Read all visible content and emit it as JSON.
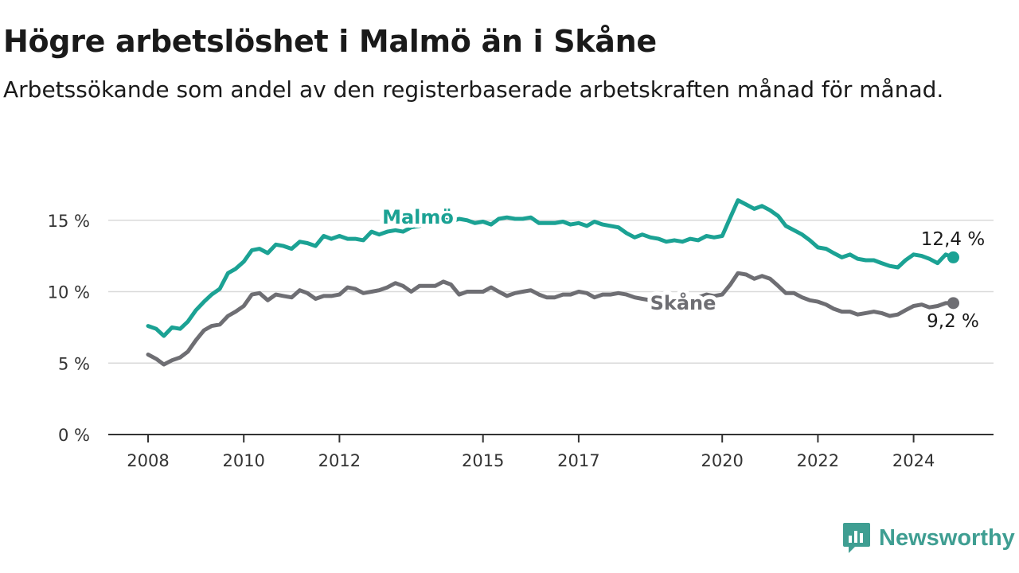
{
  "title": "Högre arbetslöshet i Malmö än i Skåne",
  "subtitle": "Arbetssökande som andel av den registerbaserade arbetskraften månad för månad.",
  "brand": {
    "name": "Newsworthy",
    "icon": "newsworthy-logo-icon",
    "color": "#3f9e92"
  },
  "chart_data": {
    "type": "line",
    "title": "Högre arbetslöshet i Malmö än i Skåne",
    "subtitle": "Arbetssökande som andel av den registerbaserade arbetskraften månad för månad.",
    "xlabel": "",
    "ylabel": "",
    "xlim": [
      2007.5,
      2025.75
    ],
    "ylim": [
      0,
      16.5
    ],
    "x_ticks": [
      {
        "value": 2008,
        "label": "2008"
      },
      {
        "value": 2010,
        "label": "2010"
      },
      {
        "value": 2012,
        "label": "2012"
      },
      {
        "value": 2015,
        "label": "2015"
      },
      {
        "value": 2017,
        "label": "2017"
      },
      {
        "value": 2020,
        "label": "2020"
      },
      {
        "value": 2022,
        "label": "2022"
      },
      {
        "value": 2024,
        "label": "2024"
      }
    ],
    "y_ticks": [
      {
        "value": 0,
        "label": "0 %"
      },
      {
        "value": 5,
        "label": "5 %"
      },
      {
        "value": 10,
        "label": "10 %"
      },
      {
        "value": 15,
        "label": "15 %"
      }
    ],
    "grid": true,
    "legend": "direct labels on lines",
    "series": [
      {
        "name": "Malmö",
        "color": "#1ba294",
        "end_label": "12,4 %",
        "points": [
          [
            2008.0,
            7.6
          ],
          [
            2008.17,
            7.4
          ],
          [
            2008.33,
            6.9
          ],
          [
            2008.5,
            7.5
          ],
          [
            2008.67,
            7.4
          ],
          [
            2008.83,
            7.9
          ],
          [
            2009.0,
            8.7
          ],
          [
            2009.17,
            9.3
          ],
          [
            2009.33,
            9.8
          ],
          [
            2009.5,
            10.2
          ],
          [
            2009.67,
            11.3
          ],
          [
            2009.83,
            11.6
          ],
          [
            2010.0,
            12.1
          ],
          [
            2010.17,
            12.9
          ],
          [
            2010.33,
            13.0
          ],
          [
            2010.5,
            12.7
          ],
          [
            2010.67,
            13.3
          ],
          [
            2010.83,
            13.2
          ],
          [
            2011.0,
            13.0
          ],
          [
            2011.17,
            13.5
          ],
          [
            2011.33,
            13.4
          ],
          [
            2011.5,
            13.2
          ],
          [
            2011.67,
            13.9
          ],
          [
            2011.83,
            13.7
          ],
          [
            2012.0,
            13.9
          ],
          [
            2012.17,
            13.7
          ],
          [
            2012.33,
            13.7
          ],
          [
            2012.5,
            13.6
          ],
          [
            2012.67,
            14.2
          ],
          [
            2012.83,
            14.0
          ],
          [
            2013.0,
            14.2
          ],
          [
            2013.17,
            14.3
          ],
          [
            2013.33,
            14.2
          ],
          [
            2013.5,
            14.5
          ],
          [
            2013.67,
            14.6
          ],
          [
            2013.83,
            14.8
          ],
          [
            2014.0,
            15.0
          ],
          [
            2014.17,
            15.1
          ],
          [
            2014.33,
            14.9
          ],
          [
            2014.5,
            15.1
          ],
          [
            2014.67,
            15.0
          ],
          [
            2014.83,
            14.8
          ],
          [
            2015.0,
            14.9
          ],
          [
            2015.17,
            14.7
          ],
          [
            2015.33,
            15.1
          ],
          [
            2015.5,
            15.2
          ],
          [
            2015.67,
            15.1
          ],
          [
            2015.83,
            15.1
          ],
          [
            2016.0,
            15.2
          ],
          [
            2016.17,
            14.8
          ],
          [
            2016.33,
            14.8
          ],
          [
            2016.5,
            14.8
          ],
          [
            2016.67,
            14.9
          ],
          [
            2016.83,
            14.7
          ],
          [
            2017.0,
            14.8
          ],
          [
            2017.17,
            14.6
          ],
          [
            2017.33,
            14.9
          ],
          [
            2017.5,
            14.7
          ],
          [
            2017.67,
            14.6
          ],
          [
            2017.83,
            14.5
          ],
          [
            2018.0,
            14.1
          ],
          [
            2018.17,
            13.8
          ],
          [
            2018.33,
            14.0
          ],
          [
            2018.5,
            13.8
          ],
          [
            2018.67,
            13.7
          ],
          [
            2018.83,
            13.5
          ],
          [
            2019.0,
            13.6
          ],
          [
            2019.17,
            13.5
          ],
          [
            2019.33,
            13.7
          ],
          [
            2019.5,
            13.6
          ],
          [
            2019.67,
            13.9
          ],
          [
            2019.83,
            13.8
          ],
          [
            2020.0,
            13.9
          ],
          [
            2020.17,
            15.2
          ],
          [
            2020.33,
            16.4
          ],
          [
            2020.5,
            16.1
          ],
          [
            2020.67,
            15.8
          ],
          [
            2020.83,
            16.0
          ],
          [
            2021.0,
            15.7
          ],
          [
            2021.17,
            15.3
          ],
          [
            2021.33,
            14.6
          ],
          [
            2021.5,
            14.3
          ],
          [
            2021.67,
            14.0
          ],
          [
            2021.83,
            13.6
          ],
          [
            2022.0,
            13.1
          ],
          [
            2022.17,
            13.0
          ],
          [
            2022.33,
            12.7
          ],
          [
            2022.5,
            12.4
          ],
          [
            2022.67,
            12.6
          ],
          [
            2022.83,
            12.3
          ],
          [
            2023.0,
            12.2
          ],
          [
            2023.17,
            12.2
          ],
          [
            2023.33,
            12.0
          ],
          [
            2023.5,
            11.8
          ],
          [
            2023.67,
            11.7
          ],
          [
            2023.83,
            12.2
          ],
          [
            2024.0,
            12.6
          ],
          [
            2024.17,
            12.5
          ],
          [
            2024.33,
            12.3
          ],
          [
            2024.5,
            12.0
          ],
          [
            2024.67,
            12.6
          ],
          [
            2024.83,
            12.4
          ]
        ]
      },
      {
        "name": "Skåne",
        "color": "#6e6e73",
        "end_label": "9,2 %",
        "points": [
          [
            2008.0,
            5.6
          ],
          [
            2008.17,
            5.3
          ],
          [
            2008.33,
            4.9
          ],
          [
            2008.5,
            5.2
          ],
          [
            2008.67,
            5.4
          ],
          [
            2008.83,
            5.8
          ],
          [
            2009.0,
            6.6
          ],
          [
            2009.17,
            7.3
          ],
          [
            2009.33,
            7.6
          ],
          [
            2009.5,
            7.7
          ],
          [
            2009.67,
            8.3
          ],
          [
            2009.83,
            8.6
          ],
          [
            2010.0,
            9.0
          ],
          [
            2010.17,
            9.8
          ],
          [
            2010.33,
            9.9
          ],
          [
            2010.5,
            9.4
          ],
          [
            2010.67,
            9.8
          ],
          [
            2010.83,
            9.7
          ],
          [
            2011.0,
            9.6
          ],
          [
            2011.17,
            10.1
          ],
          [
            2011.33,
            9.9
          ],
          [
            2011.5,
            9.5
          ],
          [
            2011.67,
            9.7
          ],
          [
            2011.83,
            9.7
          ],
          [
            2012.0,
            9.8
          ],
          [
            2012.17,
            10.3
          ],
          [
            2012.33,
            10.2
          ],
          [
            2012.5,
            9.9
          ],
          [
            2012.67,
            10.0
          ],
          [
            2012.83,
            10.1
          ],
          [
            2013.0,
            10.3
          ],
          [
            2013.17,
            10.6
          ],
          [
            2013.33,
            10.4
          ],
          [
            2013.5,
            10.0
          ],
          [
            2013.67,
            10.4
          ],
          [
            2013.83,
            10.4
          ],
          [
            2014.0,
            10.4
          ],
          [
            2014.17,
            10.7
          ],
          [
            2014.33,
            10.5
          ],
          [
            2014.5,
            9.8
          ],
          [
            2014.67,
            10.0
          ],
          [
            2014.83,
            10.0
          ],
          [
            2015.0,
            10.0
          ],
          [
            2015.17,
            10.3
          ],
          [
            2015.33,
            10.0
          ],
          [
            2015.5,
            9.7
          ],
          [
            2015.67,
            9.9
          ],
          [
            2015.83,
            10.0
          ],
          [
            2016.0,
            10.1
          ],
          [
            2016.17,
            9.8
          ],
          [
            2016.33,
            9.6
          ],
          [
            2016.5,
            9.6
          ],
          [
            2016.67,
            9.8
          ],
          [
            2016.83,
            9.8
          ],
          [
            2017.0,
            10.0
          ],
          [
            2017.17,
            9.9
          ],
          [
            2017.33,
            9.6
          ],
          [
            2017.5,
            9.8
          ],
          [
            2017.67,
            9.8
          ],
          [
            2017.83,
            9.9
          ],
          [
            2018.0,
            9.8
          ],
          [
            2018.17,
            9.6
          ],
          [
            2018.33,
            9.5
          ],
          [
            2018.5,
            9.4
          ],
          [
            2018.67,
            9.4
          ],
          [
            2018.83,
            9.3
          ],
          [
            2019.0,
            9.4
          ],
          [
            2019.17,
            9.5
          ],
          [
            2019.33,
            9.5
          ],
          [
            2019.5,
            9.6
          ],
          [
            2019.67,
            9.8
          ],
          [
            2019.83,
            9.7
          ],
          [
            2020.0,
            9.8
          ],
          [
            2020.17,
            10.5
          ],
          [
            2020.33,
            11.3
          ],
          [
            2020.5,
            11.2
          ],
          [
            2020.67,
            10.9
          ],
          [
            2020.83,
            11.1
          ],
          [
            2021.0,
            10.9
          ],
          [
            2021.17,
            10.4
          ],
          [
            2021.33,
            9.9
          ],
          [
            2021.5,
            9.9
          ],
          [
            2021.67,
            9.6
          ],
          [
            2021.83,
            9.4
          ],
          [
            2022.0,
            9.3
          ],
          [
            2022.17,
            9.1
          ],
          [
            2022.33,
            8.8
          ],
          [
            2022.5,
            8.6
          ],
          [
            2022.67,
            8.6
          ],
          [
            2022.83,
            8.4
          ],
          [
            2023.0,
            8.5
          ],
          [
            2023.17,
            8.6
          ],
          [
            2023.33,
            8.5
          ],
          [
            2023.5,
            8.3
          ],
          [
            2023.67,
            8.4
          ],
          [
            2023.83,
            8.7
          ],
          [
            2024.0,
            9.0
          ],
          [
            2024.17,
            9.1
          ],
          [
            2024.33,
            8.9
          ],
          [
            2024.5,
            9.0
          ],
          [
            2024.67,
            9.2
          ],
          [
            2024.83,
            9.2
          ]
        ]
      }
    ]
  }
}
